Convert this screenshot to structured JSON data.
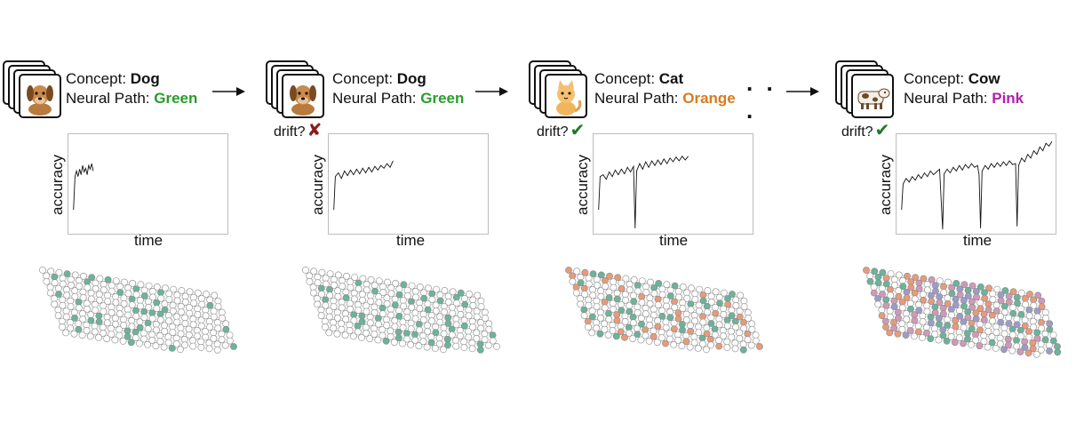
{
  "colors": {
    "green": "#2a9d2a",
    "orange": "#d97a1e",
    "pink": "#b21fae",
    "cross": "#8b1b1b",
    "check": "#1f7a1f",
    "node_green": "#6bb39a",
    "node_orange": "#e79b7a",
    "node_pink": "#cf9ab8",
    "node_purple": "#9d9cc8",
    "node_empty": "#ffffff",
    "node_edge": "#8a8a8a"
  },
  "labels": {
    "concept_prefix": "Concept: ",
    "path_prefix": "Neural Path: ",
    "drift_text": "drift?",
    "axis_y": "accuracy",
    "axis_x": "time",
    "ellipsis": ". . ."
  },
  "panels": [
    {
      "concept": "Dog",
      "path": "Green",
      "path_color": "#2a9d2a",
      "animal": "dog-icon",
      "drift": "none",
      "chart_data": {
        "type": "line",
        "xlabel": "time",
        "ylabel": "accuracy",
        "xlim": [
          0,
          100
        ],
        "ylim": [
          0,
          100
        ],
        "series": [
          {
            "values": [
              [
                1,
                22
              ],
              [
                2,
                58
              ],
              [
                3,
                64
              ],
              [
                4,
                58
              ],
              [
                5,
                66
              ],
              [
                6,
                60
              ],
              [
                7,
                70
              ],
              [
                8,
                63
              ],
              [
                9,
                67
              ],
              [
                10,
                60
              ],
              [
                11,
                70
              ],
              [
                12,
                66
              ],
              [
                13,
                72
              ],
              [
                14,
                64
              ]
            ]
          }
        ]
      },
      "network": {
        "seed": 11,
        "weights": {
          "green": 0.12
        }
      }
    },
    {
      "concept": "Dog",
      "path": "Green",
      "path_color": "#2a9d2a",
      "animal": "dog-icon",
      "drift": "cross",
      "drift_mark": "✘",
      "chart_data": {
        "type": "line",
        "xlabel": "time",
        "ylabel": "accuracy",
        "xlim": [
          0,
          100
        ],
        "ylim": [
          0,
          100
        ],
        "series": [
          {
            "values": [
              [
                1,
                22
              ],
              [
                2,
                58
              ],
              [
                4,
                62
              ],
              [
                6,
                56
              ],
              [
                8,
                64
              ],
              [
                10,
                59
              ],
              [
                12,
                65
              ],
              [
                14,
                60
              ],
              [
                16,
                66
              ],
              [
                18,
                61
              ],
              [
                20,
                67
              ],
              [
                22,
                62
              ],
              [
                24,
                68
              ],
              [
                26,
                63
              ],
              [
                28,
                69
              ],
              [
                30,
                65
              ],
              [
                32,
                70
              ],
              [
                34,
                67
              ],
              [
                36,
                72
              ],
              [
                38,
                68
              ],
              [
                40,
                75
              ]
            ]
          }
        ]
      },
      "network": {
        "seed": 23,
        "weights": {
          "green": 0.12
        }
      }
    },
    {
      "concept": "Cat",
      "path": "Orange",
      "path_color": "#d97a1e",
      "animal": "cat-icon",
      "drift": "check",
      "drift_mark": "✔",
      "chart_data": {
        "type": "line",
        "xlabel": "time",
        "ylabel": "accuracy",
        "xlim": [
          0,
          100
        ],
        "ylim": [
          0,
          100
        ],
        "series": [
          {
            "values": [
              [
                1,
                22
              ],
              [
                2,
                58
              ],
              [
                4,
                60
              ],
              [
                6,
                55
              ],
              [
                8,
                63
              ],
              [
                10,
                58
              ],
              [
                12,
                65
              ],
              [
                14,
                60
              ],
              [
                16,
                66
              ],
              [
                18,
                61
              ],
              [
                20,
                68
              ],
              [
                22,
                63
              ],
              [
                24,
                69
              ],
              [
                25,
                2
              ],
              [
                26,
                64
              ],
              [
                28,
                72
              ],
              [
                30,
                66
              ],
              [
                32,
                74
              ],
              [
                34,
                68
              ],
              [
                36,
                75
              ],
              [
                38,
                70
              ],
              [
                40,
                76
              ],
              [
                42,
                71
              ],
              [
                44,
                77
              ],
              [
                46,
                72
              ],
              [
                48,
                78
              ],
              [
                50,
                74
              ],
              [
                52,
                79
              ],
              [
                54,
                75
              ],
              [
                56,
                80
              ],
              [
                58,
                76
              ],
              [
                60,
                80
              ]
            ]
          }
        ]
      },
      "network": {
        "seed": 37,
        "weights": {
          "green": 0.15,
          "orange": 0.15
        }
      }
    },
    {
      "concept": "Cow",
      "path": "Pink",
      "path_color": "#b21fae",
      "animal": "cow-icon",
      "drift": "check",
      "drift_mark": "✔",
      "chart_data": {
        "type": "line",
        "xlabel": "time",
        "ylabel": "accuracy",
        "xlim": [
          0,
          100
        ],
        "ylim": [
          0,
          100
        ],
        "series": [
          {
            "values": [
              [
                1,
                22
              ],
              [
                2,
                50
              ],
              [
                4,
                56
              ],
              [
                6,
                52
              ],
              [
                8,
                58
              ],
              [
                10,
                54
              ],
              [
                12,
                60
              ],
              [
                14,
                56
              ],
              [
                16,
                62
              ],
              [
                18,
                58
              ],
              [
                20,
                64
              ],
              [
                22,
                60
              ],
              [
                24,
                63
              ],
              [
                26,
                66
              ],
              [
                28,
                1
              ],
              [
                29,
                61
              ],
              [
                31,
                66
              ],
              [
                33,
                62
              ],
              [
                35,
                68
              ],
              [
                37,
                64
              ],
              [
                39,
                70
              ],
              [
                41,
                65
              ],
              [
                43,
                71
              ],
              [
                45,
                67
              ],
              [
                47,
                72
              ],
              [
                49,
                68
              ],
              [
                51,
                70
              ],
              [
                52,
                60
              ],
              [
                53,
                2
              ],
              [
                54,
                64
              ],
              [
                56,
                70
              ],
              [
                58,
                66
              ],
              [
                60,
                72
              ],
              [
                62,
                68
              ],
              [
                64,
                73
              ],
              [
                66,
                69
              ],
              [
                68,
                74
              ],
              [
                70,
                70
              ],
              [
                72,
                75
              ],
              [
                74,
                71
              ],
              [
                76,
                72
              ],
              [
                77,
                4
              ],
              [
                78,
                70
              ],
              [
                80,
                78
              ],
              [
                82,
                74
              ],
              [
                84,
                82
              ],
              [
                86,
                78
              ],
              [
                88,
                86
              ],
              [
                90,
                82
              ],
              [
                92,
                90
              ],
              [
                94,
                86
              ],
              [
                96,
                94
              ],
              [
                98,
                91
              ],
              [
                100,
                96
              ]
            ]
          }
        ]
      },
      "network": {
        "seed": 53,
        "weights": {
          "green": 0.14,
          "orange": 0.16,
          "pink": 0.18,
          "purple": 0.14
        }
      }
    }
  ]
}
